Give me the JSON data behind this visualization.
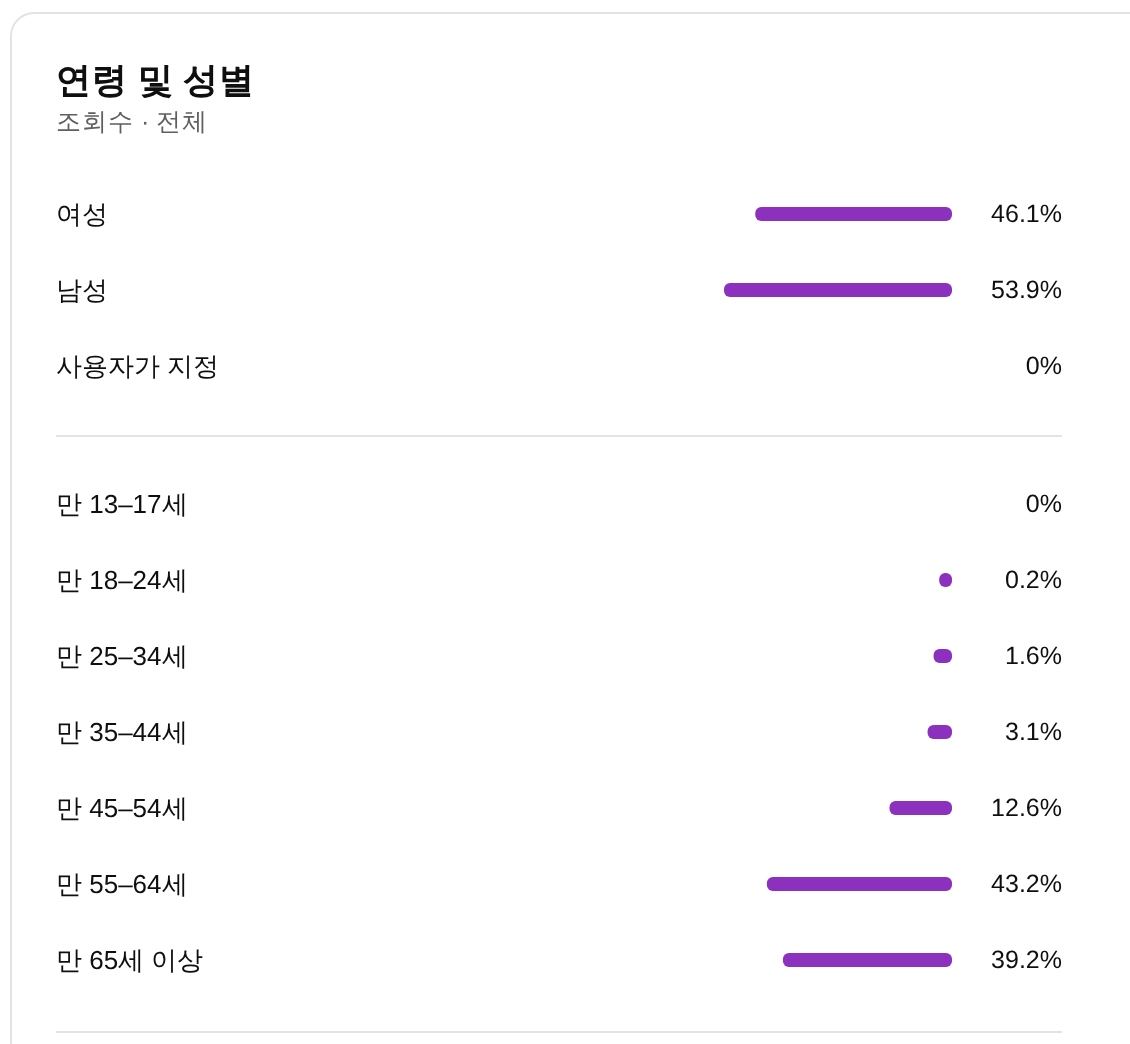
{
  "chart_data": [
    {
      "type": "bar",
      "orientation": "horizontal",
      "title": "연령 및 성별",
      "subtitle": "조회수 · 전체",
      "categories": [
        "여성",
        "남성",
        "사용자가 지정"
      ],
      "values": [
        46.1,
        53.9,
        0
      ],
      "value_labels": [
        "46.1%",
        "53.9%",
        "0%"
      ],
      "color": "#8c30be"
    },
    {
      "type": "bar",
      "orientation": "horizontal",
      "categories": [
        "만 13–17세",
        "만 18–24세",
        "만 25–34세",
        "만 35–44세",
        "만 45–54세",
        "만 55–64세",
        "만 65세 이상"
      ],
      "values": [
        0,
        0.2,
        1.6,
        3.1,
        12.6,
        43.2,
        39.2
      ],
      "value_labels": [
        "0%",
        "0.2%",
        "1.6%",
        "3.1%",
        "12.6%",
        "43.2%",
        "39.2%"
      ],
      "color": "#8c30be"
    }
  ]
}
